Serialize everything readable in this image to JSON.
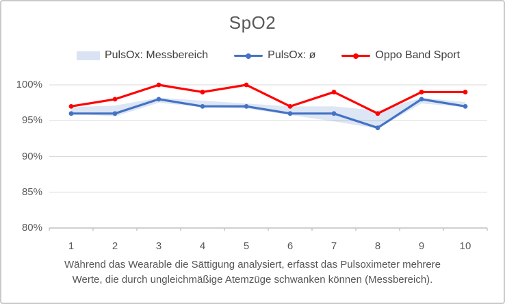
{
  "title": "SpO2",
  "legend": [
    {
      "label": "PulsOx: Messbereich",
      "swatch": "band-swatch",
      "color": "#DAE3F3"
    },
    {
      "label": "PulsOx: ø",
      "swatch": "line-dot-swatch",
      "color": "#4472C4"
    },
    {
      "label": "Oppo Band Sport",
      "swatch": "line-dot-swatch",
      "color": "#FF0000"
    }
  ],
  "caption": {
    "line1": "Während das Wearable die Sättigung analysiert, erfasst das Pulsoximeter mehrere",
    "line2": "Werte, die durch ungleichmäßige Atemzüge schwanken können (Messbereich)."
  },
  "colors": {
    "blue_line": "#4472C4",
    "red_line": "#FF0000",
    "band_fill": "#4472C4",
    "band_opacity": 0.18,
    "gridline": "#D9D9D9",
    "axis_line": "#BFBFBF",
    "text_gray": "#595959"
  },
  "chart_data": {
    "type": "line",
    "title": "SpO2",
    "categories": [
      "1",
      "2",
      "3",
      "4",
      "5",
      "6",
      "7",
      "8",
      "9",
      "10"
    ],
    "y_tick_labels": [
      "100%",
      "95%",
      "90%",
      "85%",
      "80%"
    ],
    "y_tick_values": [
      100,
      95,
      90,
      85,
      80
    ],
    "ylim": [
      80,
      100
    ],
    "grid": "horizontal",
    "legend_position": "top",
    "series": [
      {
        "name": "PulsOx: Messbereich",
        "type": "band",
        "upper": [
          96.9,
          97.1,
          98.2,
          97.8,
          97.4,
          97.0,
          97.0,
          96.4,
          98.2,
          97.6
        ],
        "lower": [
          96.0,
          95.6,
          97.5,
          96.9,
          96.7,
          95.8,
          94.9,
          93.9,
          97.4,
          96.9
        ],
        "color": "#4472C4",
        "opacity": 0.18
      },
      {
        "name": "PulsOx: ø",
        "type": "line",
        "values": [
          96,
          96,
          98,
          97,
          97,
          96,
          96,
          94,
          98,
          97
        ],
        "color": "#4472C4",
        "marker": "circle"
      },
      {
        "name": "Oppo Band Sport",
        "type": "line",
        "values": [
          97,
          98,
          100,
          99,
          100,
          97,
          99,
          96,
          99,
          99
        ],
        "color": "#FF0000",
        "marker": "circle"
      }
    ]
  }
}
